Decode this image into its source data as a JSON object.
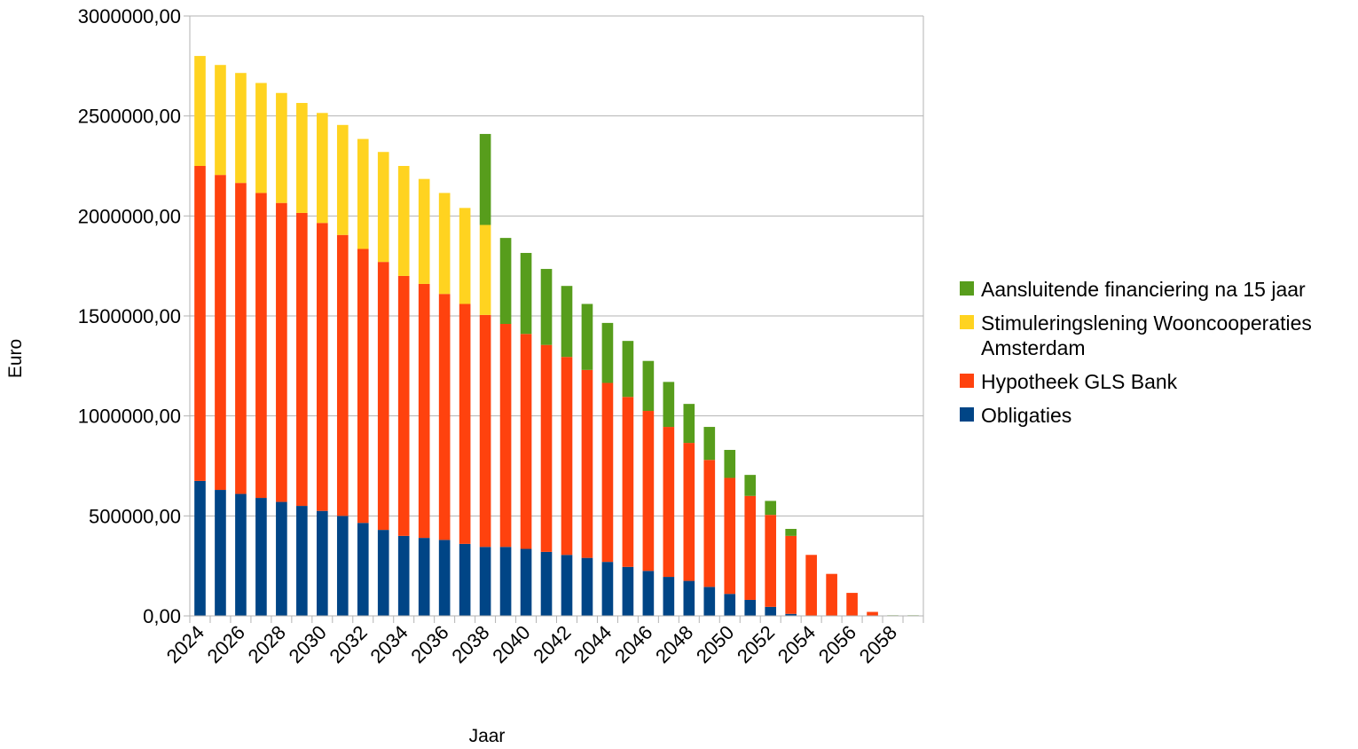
{
  "chart_data": {
    "type": "bar",
    "stacked": true,
    "title": "",
    "xlabel": "Jaar",
    "ylabel": "Euro",
    "ylim": [
      0,
      3000000
    ],
    "yticks": [
      0,
      500000,
      1000000,
      1500000,
      2000000,
      2500000,
      3000000
    ],
    "ytick_labels": [
      "0,00",
      "500000,00",
      "1000000,00",
      "1500000,00",
      "2000000,00",
      "2500000,00",
      "3000000,00"
    ],
    "grid": true,
    "legend_position": "right",
    "categories": [
      "2024",
      "2025",
      "2026",
      "2027",
      "2028",
      "2029",
      "2030",
      "2031",
      "2032",
      "2033",
      "2034",
      "2035",
      "2036",
      "2037",
      "2038",
      "2039",
      "2040",
      "2041",
      "2042",
      "2043",
      "2044",
      "2045",
      "2046",
      "2047",
      "2048",
      "2049",
      "2050",
      "2051",
      "2052",
      "2053",
      "2054",
      "2055",
      "2056",
      "2057",
      "2058",
      "2059"
    ],
    "xtick_labels": [
      "2024",
      "2026",
      "2028",
      "2030",
      "2032",
      "2034",
      "2036",
      "2038",
      "2040",
      "2042",
      "2044",
      "2046",
      "2048",
      "2050",
      "2052",
      "2054",
      "2056",
      "2058"
    ],
    "series": [
      {
        "name": "Obligaties",
        "color": "#004586",
        "values": [
          675000,
          630000,
          610000,
          590000,
          570000,
          550000,
          525000,
          500000,
          465000,
          430000,
          400000,
          390000,
          380000,
          360000,
          345000,
          345000,
          335000,
          320000,
          305000,
          290000,
          270000,
          245000,
          225000,
          195000,
          175000,
          145000,
          110000,
          80000,
          45000,
          10000,
          0,
          0,
          0,
          0,
          0,
          0
        ]
      },
      {
        "name": "Hypotheek GLS Bank",
        "color": "#ff420e",
        "values": [
          1575000,
          1575000,
          1555000,
          1525000,
          1495000,
          1465000,
          1440000,
          1405000,
          1370000,
          1340000,
          1300000,
          1270000,
          1230000,
          1200000,
          1160000,
          1115000,
          1075000,
          1035000,
          990000,
          940000,
          895000,
          850000,
          800000,
          750000,
          690000,
          635000,
          580000,
          520000,
          460000,
          390000,
          305000,
          210000,
          115000,
          20000,
          0,
          0
        ]
      },
      {
        "name": "Stimuleringslening Wooncooperaties Amsterdam",
        "color": "#ffd320",
        "values": [
          550000,
          550000,
          550000,
          550000,
          550000,
          550000,
          550000,
          550000,
          550000,
          550000,
          550000,
          525000,
          505000,
          480000,
          450000,
          0,
          0,
          0,
          0,
          0,
          0,
          0,
          0,
          0,
          0,
          0,
          0,
          0,
          0,
          0,
          0,
          0,
          0,
          0,
          0,
          0
        ]
      },
      {
        "name": "Aansluitende financiering na 15 jaar",
        "color": "#579d1c",
        "values": [
          0,
          0,
          0,
          0,
          0,
          0,
          0,
          0,
          0,
          0,
          0,
          0,
          0,
          0,
          455000,
          430000,
          405000,
          380000,
          355000,
          330000,
          300000,
          280000,
          250000,
          225000,
          195000,
          165000,
          140000,
          105000,
          70000,
          35000,
          0,
          0,
          0,
          0,
          3000,
          3000
        ]
      }
    ],
    "legend_order": [
      "Aansluitende financiering na 15 jaar",
      "Stimuleringslening Wooncooperaties Amsterdam",
      "Hypotheek GLS Bank",
      "Obligaties"
    ]
  },
  "legend": {
    "items": [
      {
        "lines": [
          "Aansluitende financiering na 15 jaar"
        ],
        "color": "#579d1c"
      },
      {
        "lines": [
          "Stimuleringslening Wooncooperaties",
          "Amsterdam"
        ],
        "color": "#ffd320"
      },
      {
        "lines": [
          "Hypotheek GLS Bank"
        ],
        "color": "#ff420e"
      },
      {
        "lines": [
          "Obligaties"
        ],
        "color": "#004586"
      }
    ]
  }
}
